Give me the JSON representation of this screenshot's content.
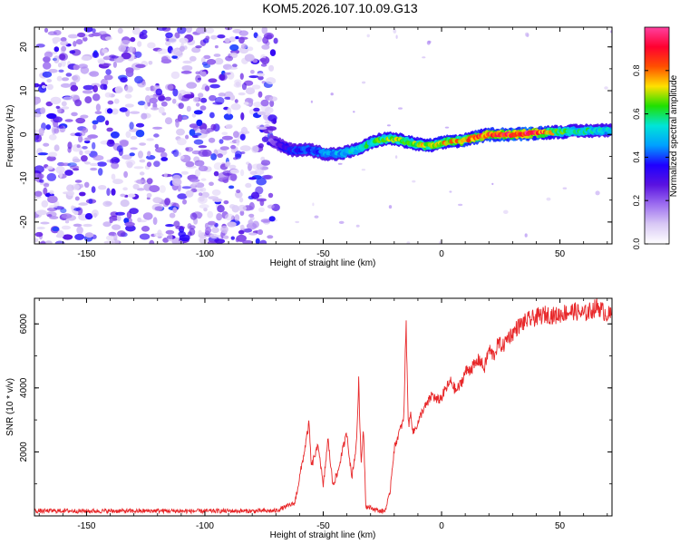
{
  "figure_title": "KOM5.2026.107.10.09.G13",
  "chart_data": [
    {
      "type": "heatmap",
      "title": "KOM5.2026.107.10.09.G13",
      "xlabel": "Height of straight line (km)",
      "ylabel": "Frequency (Hz)",
      "xlim": [
        -172,
        72
      ],
      "ylim": [
        -25,
        24.5
      ],
      "x_ticks": [
        -150,
        -100,
        -50,
        0,
        50
      ],
      "x_tick_labels": [
        "-150",
        "-100",
        "-50",
        "0",
        "50"
      ],
      "y_ticks": [
        -20,
        -10,
        0,
        10,
        20
      ],
      "y_tick_labels": [
        "-20",
        "-10",
        "0",
        "10",
        "20"
      ],
      "noise_region_x": [
        -172,
        -70
      ],
      "signal_ridge": {
        "x": [
          -72,
          -68,
          -64,
          -60,
          -56,
          -52,
          -48,
          -44,
          -40,
          -36,
          -32,
          -28,
          -24,
          -20,
          -16,
          -12,
          -8,
          -4,
          0,
          4,
          8,
          12,
          16,
          20,
          30,
          40,
          50,
          60,
          72
        ],
        "frequency": [
          -1.5,
          -2.5,
          -3.5,
          -3.5,
          -3.5,
          -4.0,
          -4.5,
          -4.5,
          -4.0,
          -3.5,
          -2.5,
          -1.5,
          -1.0,
          -1.0,
          -1.5,
          -2.0,
          -2.5,
          -2.5,
          -2.0,
          -1.5,
          -1.5,
          -1.0,
          -0.5,
          0.0,
          0.0,
          0.3,
          0.6,
          0.8,
          1.0
        ],
        "amplitude": [
          0.2,
          0.3,
          0.35,
          0.38,
          0.4,
          0.42,
          0.45,
          0.48,
          0.5,
          0.52,
          0.55,
          0.58,
          0.62,
          0.65,
          0.66,
          0.65,
          0.7,
          0.72,
          0.72,
          0.74,
          0.78,
          0.8,
          0.82,
          0.85,
          0.9,
          0.9,
          0.6,
          0.55,
          0.5
        ]
      },
      "colorbar": {
        "label": "Normalized spectral amplitude",
        "range": [
          0.0,
          1.0
        ],
        "ticks": [
          0.0,
          0.2,
          0.4,
          0.6,
          0.8
        ],
        "tick_labels": [
          "0.0",
          "0.2",
          "0.4",
          "0.6",
          "0.8"
        ],
        "colormap": [
          "#ffffff",
          "#d9c9f5",
          "#9d6ef0",
          "#5a12e0",
          "#1f00ff",
          "#00a0ff",
          "#00e5d8",
          "#20e000",
          "#ffe000",
          "#ff5000",
          "#ff0030",
          "#ff40a0"
        ]
      }
    },
    {
      "type": "line",
      "xlabel": "Height of straight line (km)",
      "ylabel": "SNR (10 * v/v)",
      "xlim": [
        -172,
        72
      ],
      "ylim": [
        0,
        6800
      ],
      "x_ticks": [
        -150,
        -100,
        -50,
        0,
        50
      ],
      "x_tick_labels": [
        "-150",
        "-100",
        "-50",
        "0",
        "50"
      ],
      "y_ticks": [
        2000,
        4000,
        6000
      ],
      "y_tick_labels": [
        "2000",
        "4000",
        "6000"
      ],
      "series": [
        {
          "name": "SNR",
          "color": "#e8282a",
          "x": [
            -172,
            -160,
            -150,
            -140,
            -130,
            -120,
            -110,
            -100,
            -90,
            -80,
            -70,
            -62,
            -60,
            -58,
            -56,
            -55,
            -54,
            -52,
            -50,
            -48,
            -46,
            -44,
            -42,
            -40,
            -38,
            -36,
            -35,
            -34,
            -33,
            -32,
            -30,
            -28,
            -26,
            -24,
            -22,
            -21,
            -20,
            -18,
            -16,
            -15,
            -14,
            -13,
            -12,
            -10,
            -8,
            -6,
            -4,
            -2,
            0,
            2,
            4,
            6,
            8,
            10,
            12,
            14,
            16,
            18,
            20,
            22,
            24,
            26,
            28,
            30,
            32,
            36,
            40,
            44,
            48,
            52,
            56,
            60,
            64,
            66,
            68,
            70,
            72
          ],
          "values": [
            150,
            160,
            150,
            155,
            150,
            160,
            150,
            150,
            155,
            150,
            160,
            400,
            1200,
            2000,
            2900,
            1500,
            1800,
            2200,
            900,
            2400,
            1000,
            1300,
            2000,
            2600,
            1200,
            2200,
            4200,
            1600,
            2800,
            300,
            250,
            200,
            150,
            150,
            600,
            1400,
            2100,
            2600,
            3000,
            6000,
            2800,
            3200,
            2600,
            2900,
            3300,
            3500,
            3800,
            3600,
            3700,
            4000,
            4200,
            3900,
            4100,
            4500,
            4600,
            4700,
            4900,
            4600,
            5200,
            5000,
            5400,
            5300,
            5600,
            5700,
            5900,
            6100,
            6200,
            6300,
            6250,
            6350,
            6400,
            6300,
            6450,
            6550,
            6400,
            6300,
            6250
          ]
        }
      ]
    }
  ]
}
